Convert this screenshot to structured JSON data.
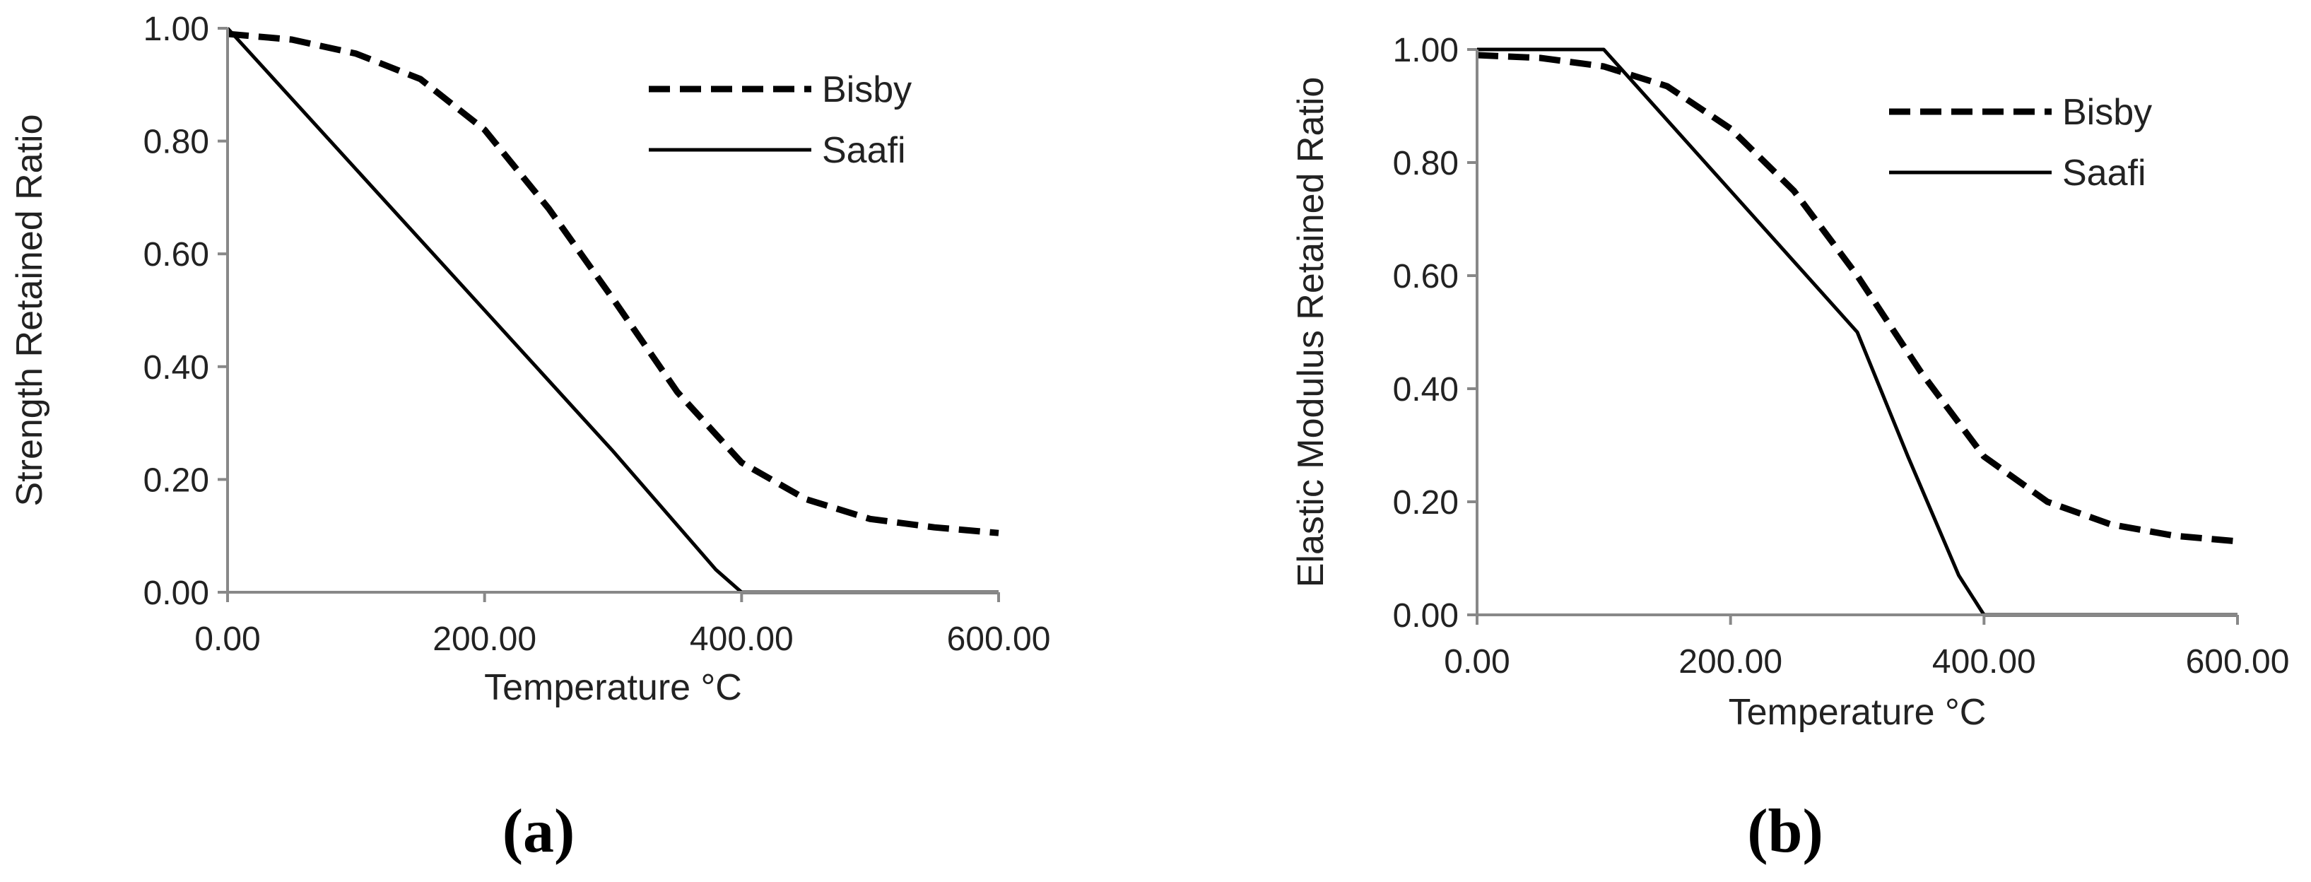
{
  "chart_data": [
    {
      "type": "line",
      "panel_label": "(a)",
      "xlabel": "Temperature °C",
      "ylabel": "Strength Retained Ratio",
      "xlim": [
        0,
        600
      ],
      "ylim": [
        0,
        1
      ],
      "x_ticks": [
        "0.00",
        "200.00",
        "400.00",
        "600.00"
      ],
      "y_ticks": [
        "0.00",
        "0.20",
        "0.40",
        "0.60",
        "0.80",
        "1.00"
      ],
      "grid": false,
      "legend_position": "top-right",
      "series": [
        {
          "name": "Bisby",
          "style": "dashed",
          "color": "#000000",
          "x": [
            0,
            50,
            100,
            150,
            200,
            250,
            300,
            350,
            400,
            450,
            500,
            550,
            600
          ],
          "y": [
            0.99,
            0.98,
            0.955,
            0.91,
            0.82,
            0.68,
            0.52,
            0.355,
            0.23,
            0.165,
            0.13,
            0.115,
            0.105
          ]
        },
        {
          "name": "Saafi",
          "style": "solid",
          "color": "#000000",
          "x": [
            0,
            100,
            200,
            300,
            380,
            400,
            600
          ],
          "y": [
            1.0,
            0.75,
            0.5,
            0.25,
            0.04,
            0.0,
            0.0
          ]
        }
      ]
    },
    {
      "type": "line",
      "panel_label": "(b)",
      "xlabel": "Temperature °C",
      "ylabel": "Elastic Modulus Retained Ratio",
      "xlim": [
        0,
        600
      ],
      "ylim": [
        0,
        1
      ],
      "x_ticks": [
        "0.00",
        "200.00",
        "400.00",
        "600.00"
      ],
      "y_ticks": [
        "0.00",
        "0.20",
        "0.40",
        "0.60",
        "0.80",
        "1.00"
      ],
      "grid": false,
      "legend_position": "top-right",
      "series": [
        {
          "name": "Bisby",
          "style": "dashed",
          "color": "#000000",
          "x": [
            0,
            50,
            100,
            150,
            200,
            250,
            300,
            350,
            400,
            450,
            500,
            550,
            600
          ],
          "y": [
            0.99,
            0.985,
            0.97,
            0.935,
            0.86,
            0.75,
            0.6,
            0.43,
            0.28,
            0.2,
            0.16,
            0.14,
            0.13
          ]
        },
        {
          "name": "Saafi",
          "style": "solid",
          "color": "#000000",
          "x": [
            0,
            100,
            200,
            300,
            340,
            380,
            400,
            600
          ],
          "y": [
            1.0,
            1.0,
            0.75,
            0.5,
            0.28,
            0.07,
            0.0,
            0.0
          ]
        }
      ]
    }
  ]
}
